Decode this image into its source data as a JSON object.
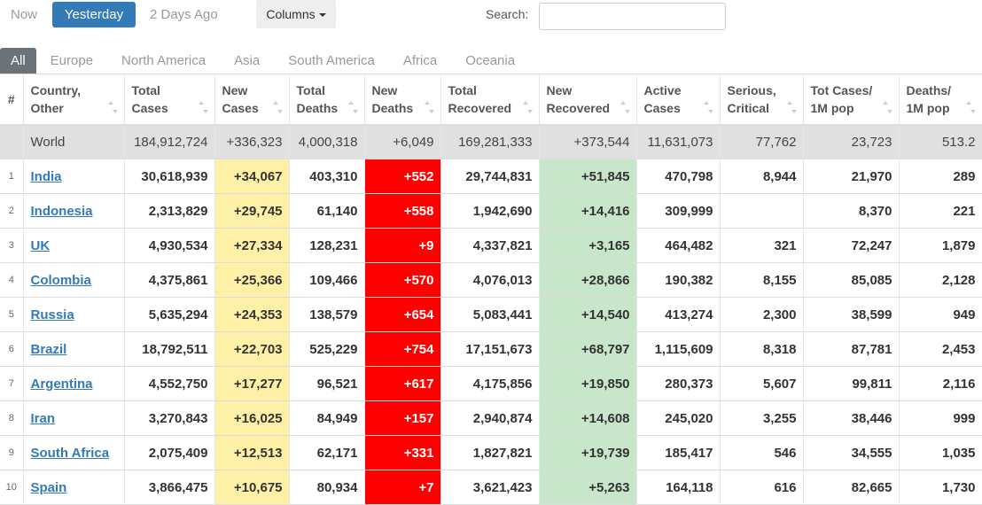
{
  "toolbar": {
    "day_tabs": [
      "Now",
      "Yesterday",
      "2 Days Ago"
    ],
    "columns_button": "Columns",
    "search_label": "Search:"
  },
  "region_tabs": [
    "All",
    "Europe",
    "North America",
    "Asia",
    "South America",
    "Africa",
    "Oceania"
  ],
  "table": {
    "headers": [
      [
        "#"
      ],
      [
        "Country,",
        "Other"
      ],
      [
        "Total",
        "Cases"
      ],
      [
        "New",
        "Cases"
      ],
      [
        "Total",
        "Deaths"
      ],
      [
        "New",
        "Deaths"
      ],
      [
        "Total",
        "Recovered"
      ],
      [
        "New",
        "Recovered"
      ],
      [
        "Active",
        "Cases"
      ],
      [
        "Serious,",
        "Critical"
      ],
      [
        "Tot Cases/",
        "1M pop"
      ],
      [
        "Deaths/",
        "1M pop"
      ]
    ],
    "world": [
      "World",
      "184,912,724",
      "+336,323",
      "4,000,318",
      "+6,049",
      "169,281,333",
      "+373,544",
      "11,631,073",
      "77,762",
      "23,723",
      "513.2"
    ],
    "rows": [
      [
        "1",
        "India",
        "30,618,939",
        "+34,067",
        "403,310",
        "+552",
        "29,744,831",
        "+51,845",
        "470,798",
        "8,944",
        "21,970",
        "289"
      ],
      [
        "2",
        "Indonesia",
        "2,313,829",
        "+29,745",
        "61,140",
        "+558",
        "1,942,690",
        "+14,416",
        "309,999",
        null,
        "8,370",
        "221"
      ],
      [
        "3",
        "UK",
        "4,930,534",
        "+27,334",
        "128,231",
        "+9",
        "4,337,821",
        "+3,165",
        "464,482",
        "321",
        "72,247",
        "1,879"
      ],
      [
        "4",
        "Colombia",
        "4,375,861",
        "+25,366",
        "109,466",
        "+570",
        "4,076,013",
        "+28,866",
        "190,382",
        "8,155",
        "85,085",
        "2,128"
      ],
      [
        "5",
        "Russia",
        "5,635,294",
        "+24,353",
        "138,579",
        "+654",
        "5,083,441",
        "+14,540",
        "413,274",
        "2,300",
        "38,599",
        "949"
      ],
      [
        "6",
        "Brazil",
        "18,792,511",
        "+22,703",
        "525,229",
        "+754",
        "17,151,673",
        "+68,797",
        "1,115,609",
        "8,318",
        "87,781",
        "2,453"
      ],
      [
        "7",
        "Argentina",
        "4,552,750",
        "+17,277",
        "96,521",
        "+617",
        "4,175,856",
        "+19,850",
        "280,373",
        "5,607",
        "99,811",
        "2,116"
      ],
      [
        "8",
        "Iran",
        "3,270,843",
        "+16,025",
        "84,949",
        "+157",
        "2,940,874",
        "+14,608",
        "245,020",
        "3,255",
        "38,446",
        "999"
      ],
      [
        "9",
        "South Africa",
        "2,075,409",
        "+12,513",
        "62,171",
        "+331",
        "1,827,821",
        "+19,739",
        "185,417",
        "546",
        "34,555",
        "1,035"
      ],
      [
        "10",
        "Spain",
        "3,866,475",
        "+10,675",
        "80,934",
        "+7",
        "3,621,423",
        "+5,263",
        "164,118",
        "616",
        "82,665",
        "1,730"
      ]
    ]
  }
}
